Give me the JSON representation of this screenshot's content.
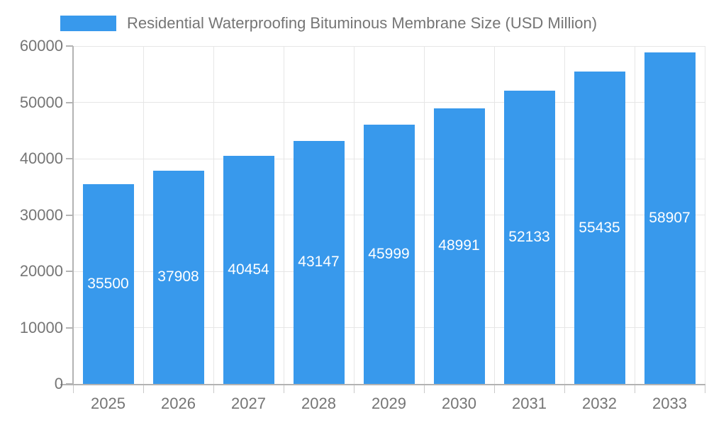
{
  "legend": {
    "label": "Residential Waterproofing Bituminous Membrane Size (USD Million)"
  },
  "chart_data": {
    "type": "bar",
    "title": "Residential Waterproofing Bituminous Membrane Size (USD Million)",
    "series_name": "Residential Waterproofing Bituminous Membrane Size (USD Million)",
    "categories": [
      "2025",
      "2026",
      "2027",
      "2028",
      "2029",
      "2030",
      "2031",
      "2032",
      "2033"
    ],
    "values": [
      35500,
      37908,
      40454,
      43147,
      45999,
      48991,
      52133,
      55435,
      58907
    ],
    "value_labels": [
      "35500",
      "37908",
      "40454",
      "43147",
      "45999",
      "48991",
      "52133",
      "55435",
      "58907"
    ],
    "xlabel": "",
    "ylabel": "",
    "ylim": [
      0,
      60000
    ],
    "ytick_step": 10000,
    "yticks": [
      0,
      10000,
      20000,
      30000,
      40000,
      50000,
      60000
    ],
    "ytick_labels": [
      "0",
      "10000",
      "20000",
      "30000",
      "40000",
      "50000",
      "60000"
    ],
    "grid": true,
    "legend_position": "top-left",
    "value_label_position": "inside-center",
    "colors": {
      "bar": "#3899EC",
      "value_label": "#ffffff",
      "axis_label": "#757575",
      "gridline": "#e6e6e6",
      "axis_line": "#b3b3b3",
      "background": "#ffffff"
    }
  }
}
